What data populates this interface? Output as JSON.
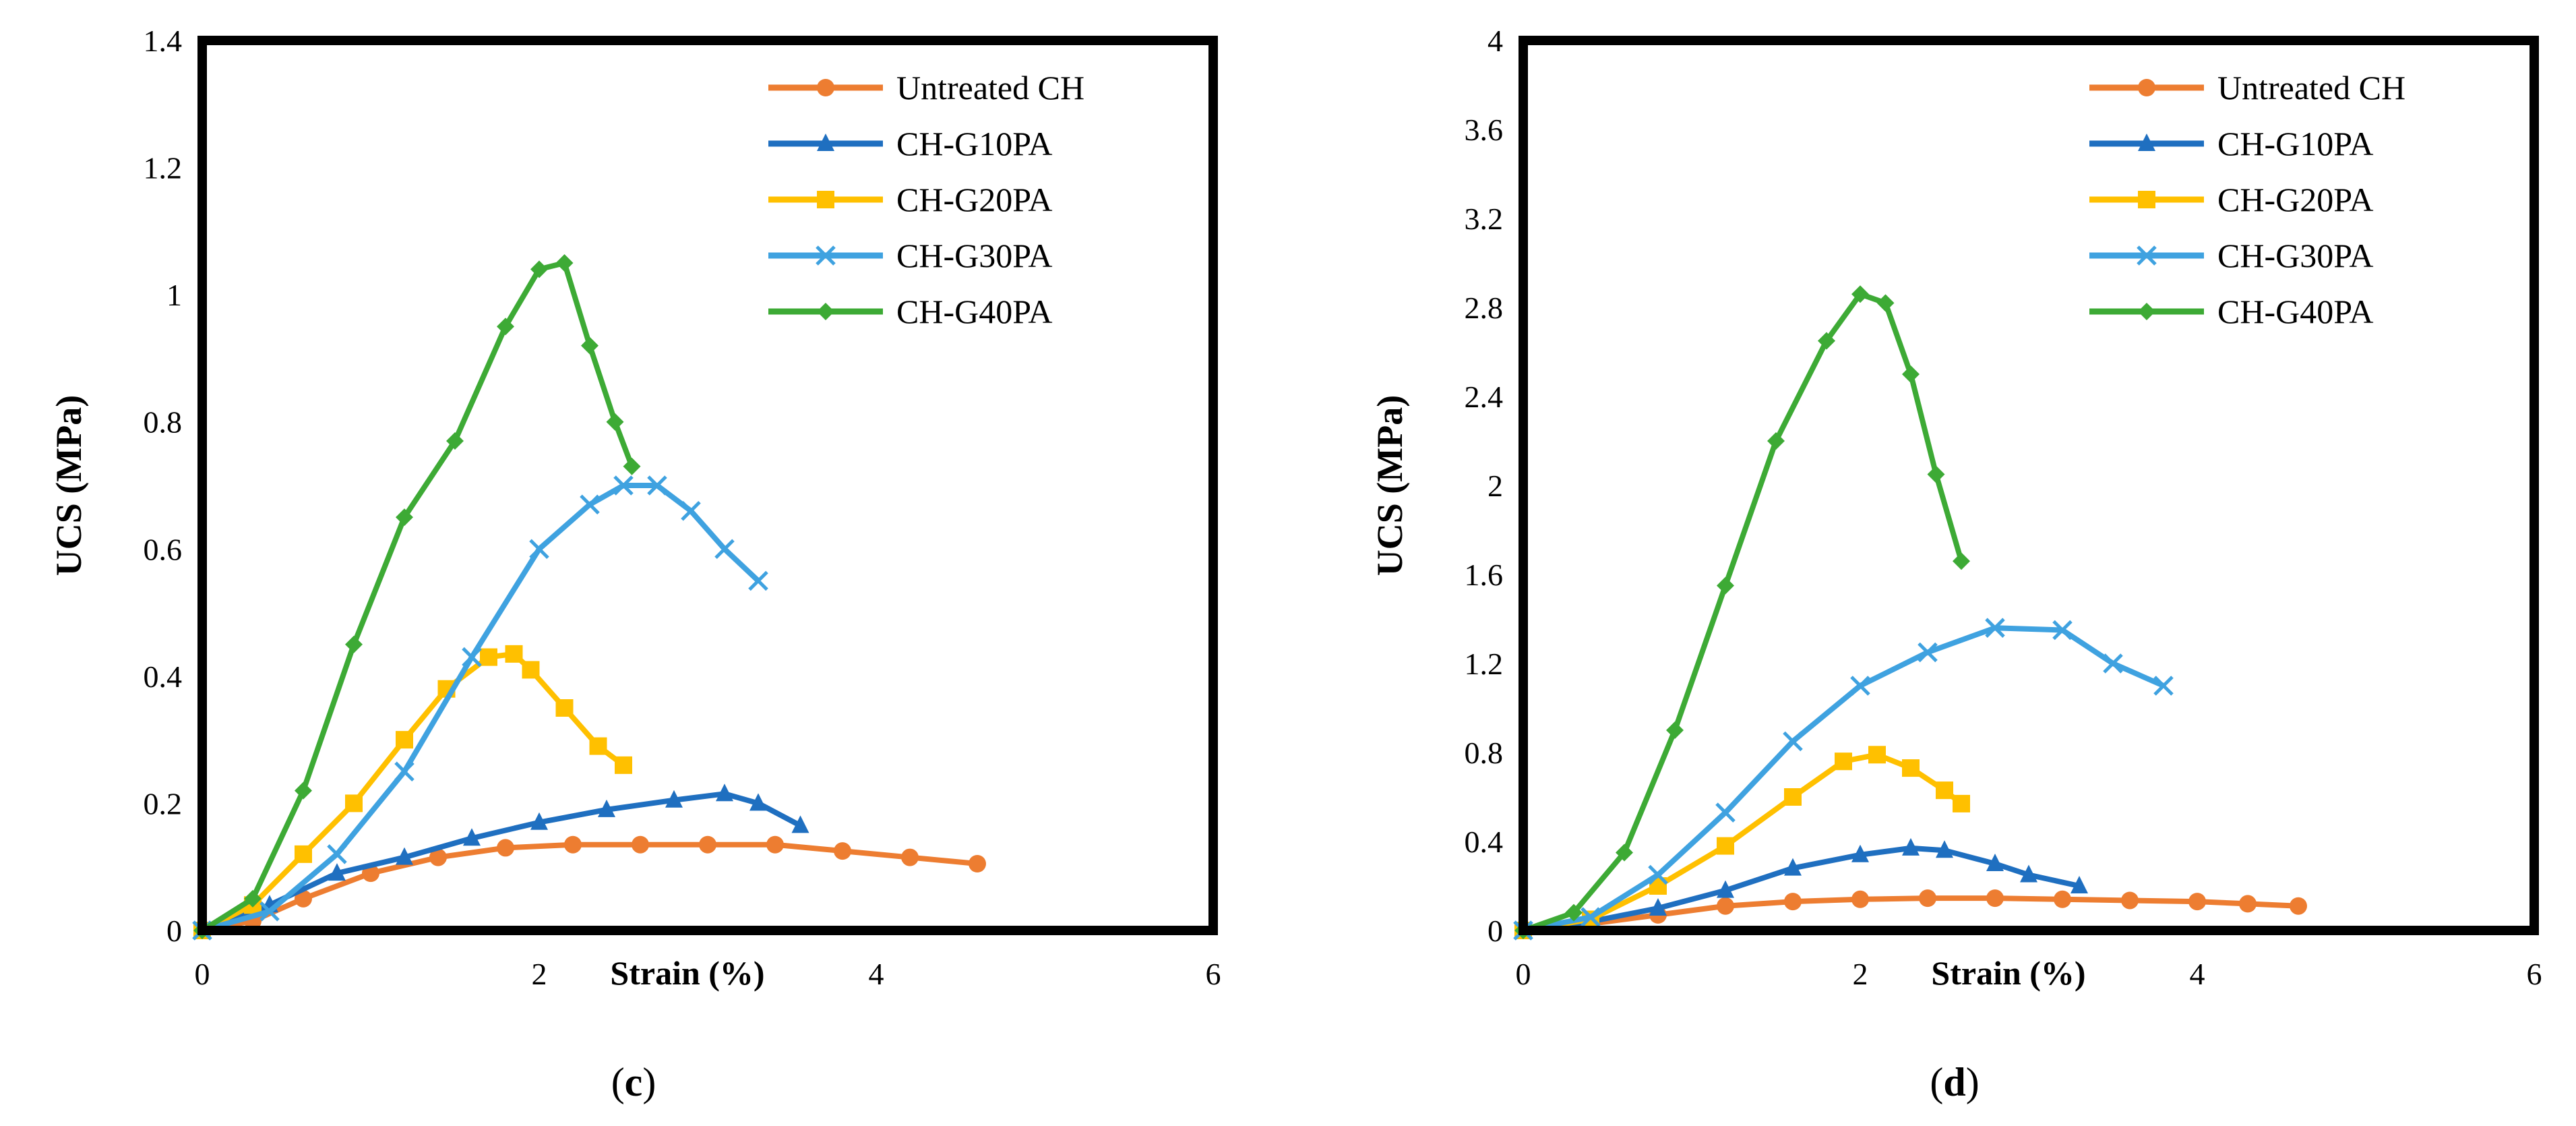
{
  "colors": {
    "untreated": "#ED7D31",
    "g10": "#1F6FC0",
    "g20": "#FFC000",
    "g30": "#3FA2E0",
    "g40": "#3DAA35"
  },
  "chart_data": [
    {
      "type": "line",
      "panel": "c",
      "caption_open": "(",
      "caption_letter": "c",
      "caption_close": ")",
      "xlabel": "Strain (%)",
      "ylabel": "UCS (MPa)",
      "xlim": [
        0,
        6
      ],
      "ylim": [
        0,
        1.4
      ],
      "xticks": [
        0,
        2,
        4,
        6
      ],
      "xtick_labels": [
        "0",
        "2",
        "4",
        "6"
      ],
      "yticks": [
        0,
        0.2,
        0.4,
        0.6,
        0.8,
        1,
        1.2,
        1.4
      ],
      "ytick_labels": [
        "0",
        "0.2",
        "0.4",
        "0.6",
        "0.8",
        "1",
        "1.2",
        "1.4"
      ],
      "legend_position": "top-right",
      "series": [
        {
          "name": "Untreated CH",
          "color_key": "untreated",
          "marker": "circle",
          "x": [
            0.0,
            0.3,
            0.6,
            1.0,
            1.4,
            1.8,
            2.2,
            2.6,
            3.0,
            3.4,
            3.8,
            4.2,
            4.6
          ],
          "y": [
            0.0,
            0.015,
            0.05,
            0.09,
            0.115,
            0.13,
            0.135,
            0.135,
            0.135,
            0.135,
            0.125,
            0.115,
            0.105
          ]
        },
        {
          "name": "CH-G10PA",
          "color_key": "g10",
          "marker": "triangle",
          "x": [
            0.0,
            0.4,
            0.8,
            1.2,
            1.6,
            2.0,
            2.4,
            2.8,
            3.1,
            3.3,
            3.55
          ],
          "y": [
            0.0,
            0.04,
            0.09,
            0.115,
            0.145,
            0.17,
            0.19,
            0.205,
            0.215,
            0.2,
            0.165
          ]
        },
        {
          "name": "CH-G20PA",
          "color_key": "g20",
          "marker": "square",
          "x": [
            0.0,
            0.3,
            0.6,
            0.9,
            1.2,
            1.45,
            1.7,
            1.85,
            1.95,
            2.15,
            2.35,
            2.5
          ],
          "y": [
            0.0,
            0.04,
            0.12,
            0.2,
            0.3,
            0.38,
            0.43,
            0.435,
            0.41,
            0.35,
            0.29,
            0.26
          ]
        },
        {
          "name": "CH-G30PA",
          "color_key": "g30",
          "marker": "x",
          "x": [
            0.0,
            0.4,
            0.8,
            1.2,
            1.6,
            2.0,
            2.3,
            2.5,
            2.7,
            2.9,
            3.1,
            3.3
          ],
          "y": [
            0.0,
            0.03,
            0.12,
            0.25,
            0.43,
            0.6,
            0.67,
            0.7,
            0.7,
            0.66,
            0.6,
            0.55
          ]
        },
        {
          "name": "CH-G40PA",
          "color_key": "g40",
          "marker": "diamond",
          "x": [
            0.0,
            0.3,
            0.6,
            0.9,
            1.2,
            1.5,
            1.8,
            2.0,
            2.15,
            2.3,
            2.45,
            2.55
          ],
          "y": [
            0.0,
            0.05,
            0.22,
            0.45,
            0.65,
            0.77,
            0.95,
            1.04,
            1.05,
            0.92,
            0.8,
            0.73
          ]
        }
      ]
    },
    {
      "type": "line",
      "panel": "d",
      "caption_open": "(",
      "caption_letter": "d",
      "caption_close": ")",
      "xlabel": "Strain (%)",
      "ylabel": "UCS (MPa)",
      "xlim": [
        0,
        6
      ],
      "ylim": [
        0,
        4
      ],
      "xticks": [
        0,
        2,
        4,
        6
      ],
      "xtick_labels": [
        "0",
        "2",
        "4",
        "6"
      ],
      "yticks": [
        0,
        0.4,
        0.8,
        1.2,
        1.6,
        2,
        2.4,
        2.8,
        3.2,
        3.6,
        4
      ],
      "ytick_labels": [
        "0",
        "0.4",
        "0.8",
        "1.2",
        "1.6",
        "2",
        "2.4",
        "2.8",
        "3.2",
        "3.6",
        "4"
      ],
      "legend_position": "top-right",
      "series": [
        {
          "name": "Untreated CH",
          "color_key": "untreated",
          "marker": "circle",
          "x": [
            0.0,
            0.4,
            0.8,
            1.2,
            1.6,
            2.0,
            2.4,
            2.8,
            3.2,
            3.6,
            4.0,
            4.3,
            4.6
          ],
          "y": [
            0.0,
            0.03,
            0.07,
            0.11,
            0.13,
            0.14,
            0.145,
            0.145,
            0.14,
            0.135,
            0.13,
            0.12,
            0.11
          ]
        },
        {
          "name": "CH-G10PA",
          "color_key": "g10",
          "marker": "triangle",
          "x": [
            0.0,
            0.4,
            0.8,
            1.2,
            1.6,
            2.0,
            2.3,
            2.5,
            2.8,
            3.0,
            3.3
          ],
          "y": [
            0.0,
            0.04,
            0.1,
            0.18,
            0.28,
            0.34,
            0.37,
            0.36,
            0.3,
            0.25,
            0.2
          ]
        },
        {
          "name": "CH-G20PA",
          "color_key": "g20",
          "marker": "square",
          "x": [
            0.0,
            0.4,
            0.8,
            1.2,
            1.6,
            1.9,
            2.1,
            2.3,
            2.5,
            2.6
          ],
          "y": [
            0.0,
            0.05,
            0.2,
            0.38,
            0.6,
            0.76,
            0.79,
            0.73,
            0.63,
            0.57
          ]
        },
        {
          "name": "CH-G30PA",
          "color_key": "g30",
          "marker": "x",
          "x": [
            0.0,
            0.4,
            0.8,
            1.2,
            1.6,
            2.0,
            2.4,
            2.8,
            3.2,
            3.5,
            3.8
          ],
          "y": [
            0.0,
            0.06,
            0.25,
            0.53,
            0.85,
            1.1,
            1.25,
            1.36,
            1.35,
            1.2,
            1.1
          ]
        },
        {
          "name": "CH-G40PA",
          "color_key": "g40",
          "marker": "diamond",
          "x": [
            0.0,
            0.3,
            0.6,
            0.9,
            1.2,
            1.5,
            1.8,
            2.0,
            2.15,
            2.3,
            2.45,
            2.6
          ],
          "y": [
            0.0,
            0.08,
            0.35,
            0.9,
            1.55,
            2.2,
            2.65,
            2.86,
            2.82,
            2.5,
            2.05,
            1.66
          ]
        }
      ]
    }
  ]
}
